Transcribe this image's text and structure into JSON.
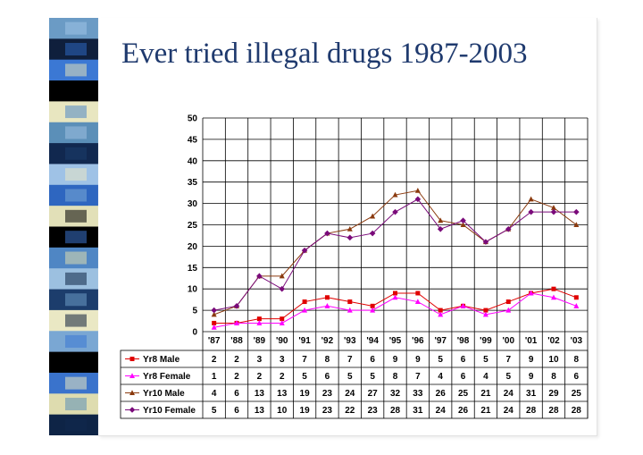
{
  "slide": {
    "title": "Ever tried illegal drugs 1987-2003"
  },
  "decor": {
    "strip_colors": [
      "#6b9bc5",
      "#0f1f3c",
      "#3b78d4",
      "#000000",
      "#e8e6c0",
      "#5b8fb8",
      "#11284f",
      "#9fc2e6",
      "#2e66c0",
      "#e2e0b8",
      "#000000",
      "#4f86c4",
      "#9cc0e0",
      "#1c3d6c",
      "#eae8c4",
      "#7aa7d3",
      "#000000",
      "#3a73cc",
      "#dedcaf",
      "#0e2446"
    ]
  },
  "chart_data": {
    "type": "line",
    "title": "",
    "xlabel": "",
    "ylabel": "",
    "ylim": [
      0,
      50
    ],
    "yticks": [
      0,
      5,
      10,
      15,
      20,
      25,
      30,
      35,
      40,
      45,
      50
    ],
    "grid": true,
    "legend": "data-table",
    "categories": [
      "'87",
      "'88",
      "'89",
      "'90",
      "'91",
      "'92",
      "'93",
      "'94",
      "'95",
      "'96",
      "'97",
      "'98",
      "'99",
      "'00",
      "'01",
      "'02",
      "'03"
    ],
    "series": [
      {
        "name": "Yr8 Male",
        "color": "#e00000",
        "marker": "square",
        "values": [
          2,
          2,
          3,
          3,
          7,
          8,
          7,
          6,
          9,
          9,
          5,
          6,
          5,
          7,
          9,
          10,
          8
        ]
      },
      {
        "name": "Yr8 Female",
        "color": "#ff00ff",
        "marker": "triangle",
        "values": [
          1,
          2,
          2,
          2,
          5,
          6,
          5,
          5,
          8,
          7,
          4,
          6,
          4,
          5,
          9,
          8,
          6
        ]
      },
      {
        "name": "Yr10 Male",
        "color": "#8b3a0e",
        "marker": "triangle",
        "values": [
          4,
          6,
          13,
          13,
          19,
          23,
          24,
          27,
          32,
          33,
          26,
          25,
          21,
          24,
          31,
          29,
          25
        ]
      },
      {
        "name": "Yr10 Female",
        "color": "#7a0a7a",
        "marker": "diamond",
        "values": [
          5,
          6,
          13,
          10,
          19,
          23,
          22,
          23,
          28,
          31,
          24,
          26,
          21,
          24,
          28,
          28,
          28
        ]
      }
    ]
  }
}
